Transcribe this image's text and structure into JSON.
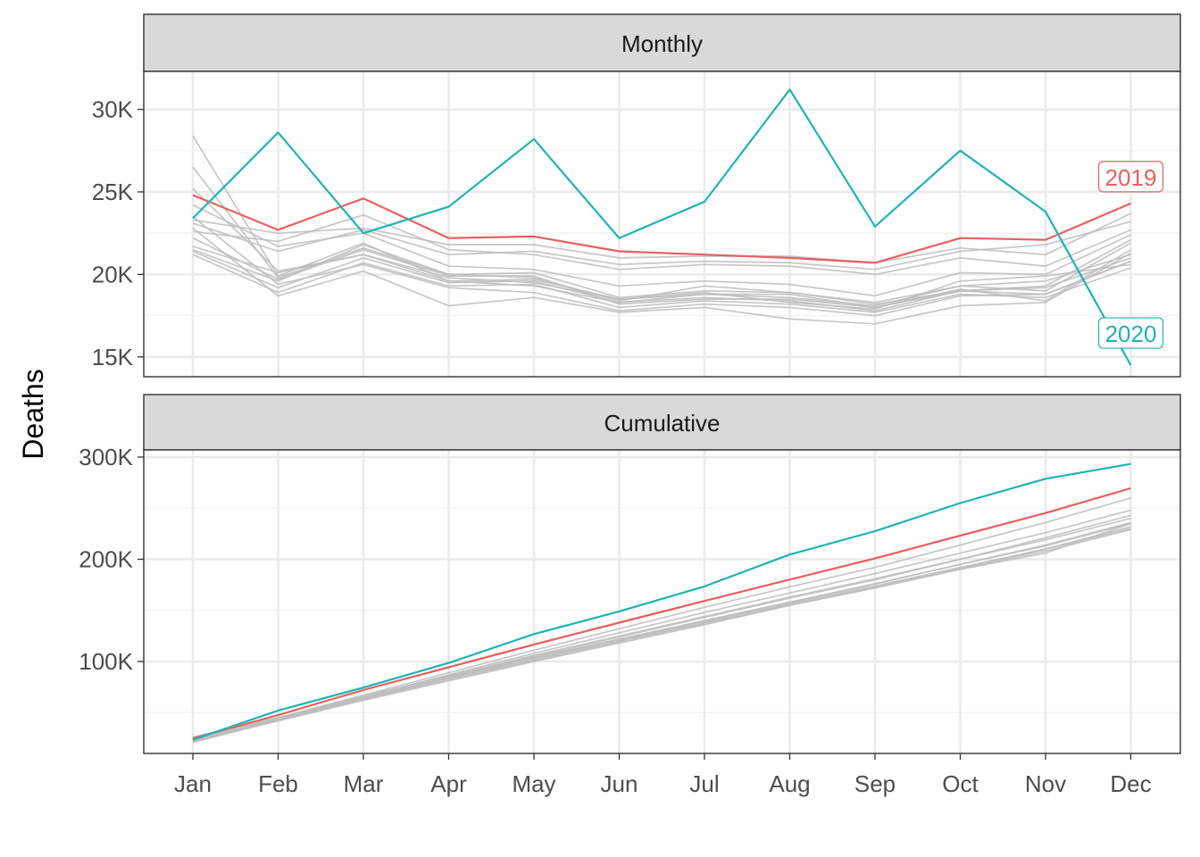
{
  "chart_data": {
    "type": "line",
    "ylabel": "Deaths",
    "categories": [
      "Jan",
      "Feb",
      "Mar",
      "Apr",
      "May",
      "Jun",
      "Jul",
      "Aug",
      "Sep",
      "Oct",
      "Nov",
      "Dec"
    ],
    "colors": {
      "highlight_2019": "#e8605f",
      "highlight_2020": "#1fb3b5",
      "background": "#bdbdbd"
    },
    "panels": [
      {
        "title": "Monthly",
        "ylim": [
          13800,
          32300
        ],
        "yticks": [
          15000,
          20000,
          25000,
          30000
        ],
        "ytick_labels": [
          "15K",
          "20K",
          "25K",
          "30K"
        ],
        "background_series": [
          [
            28400,
            19900,
            21900,
            19600,
            19300,
            18300,
            18800,
            18600,
            18100,
            19300,
            19000,
            21900
          ],
          [
            26500,
            19800,
            21600,
            20000,
            19800,
            18400,
            19300,
            18900,
            18200,
            19000,
            19200,
            21000
          ],
          [
            25200,
            20200,
            21200,
            19800,
            19500,
            18500,
            18900,
            18300,
            17900,
            19600,
            19900,
            20600
          ],
          [
            24200,
            21700,
            22500,
            20500,
            20300,
            19300,
            19600,
            19400,
            18700,
            20100,
            20000,
            22400
          ],
          [
            23500,
            19400,
            20600,
            19200,
            18900,
            17800,
            18200,
            18000,
            17500,
            18700,
            18800,
            20800
          ],
          [
            22800,
            18700,
            20200,
            18100,
            18600,
            17700,
            18000,
            17300,
            17000,
            18100,
            18300,
            21300
          ],
          [
            22200,
            19700,
            21500,
            19900,
            19900,
            18200,
            18500,
            18500,
            18000,
            19100,
            18400,
            21500
          ],
          [
            21700,
            20100,
            21200,
            19600,
            19700,
            18500,
            18800,
            18800,
            18000,
            19000,
            19300,
            22100
          ],
          [
            21500,
            19600,
            21800,
            20000,
            20100,
            18600,
            19000,
            18900,
            18300,
            19300,
            19600,
            21200
          ],
          [
            21200,
            18900,
            20700,
            19300,
            19400,
            18000,
            18400,
            18200,
            17700,
            18800,
            18600,
            20400
          ],
          [
            21400,
            19200,
            21000,
            19500,
            19600,
            18300,
            18600,
            18400,
            17800,
            19000,
            18800,
            20800
          ],
          [
            23300,
            22500,
            22800,
            21800,
            21800,
            21000,
            21100,
            21100,
            20700,
            21600,
            21200,
            23700
          ],
          [
            22600,
            22000,
            23600,
            21500,
            21200,
            20300,
            20600,
            20500,
            20000,
            21000,
            20500,
            22700
          ],
          [
            23100,
            21400,
            22700,
            21200,
            21400,
            20600,
            20800,
            20700,
            20300,
            21400,
            21800,
            23200
          ]
        ],
        "series": [
          {
            "name": "2019",
            "values": [
              24800,
              22700,
              24600,
              22200,
              22300,
              21400,
              21200,
              21000,
              20700,
              22200,
              22100,
              24300
            ]
          },
          {
            "name": "2020",
            "values": [
              23400,
              28600,
              22500,
              24100,
              28200,
              22200,
              24400,
              31200,
              22900,
              27500,
              23800,
              14500
            ]
          }
        ]
      },
      {
        "title": "Cumulative",
        "ylim": [
          10000,
          307000
        ],
        "yticks": [
          100000,
          200000,
          300000
        ],
        "ytick_labels": [
          "100K",
          "200K",
          "300K"
        ],
        "background_series": [
          [
            26000,
            45000,
            66000,
            86000,
            104000,
            122000,
            140000,
            158000,
            176000,
            195000,
            213000,
            235000
          ],
          [
            25000,
            44000,
            64000,
            84000,
            104000,
            121000,
            139000,
            157000,
            174000,
            192000,
            210000,
            230000
          ],
          [
            24000,
            43000,
            63000,
            83000,
            102000,
            120000,
            138000,
            156000,
            173000,
            191000,
            208000,
            229000
          ],
          [
            23000,
            42000,
            62000,
            81000,
            100000,
            118000,
            136000,
            155000,
            172000,
            190000,
            206000,
            235000
          ],
          [
            22000,
            43000,
            64000,
            85000,
            105000,
            124000,
            143000,
            162000,
            180000,
            200000,
            221000,
            243000
          ],
          [
            21000,
            44000,
            65000,
            87000,
            108000,
            128000,
            148000,
            167000,
            186000,
            206000,
            226000,
            248000
          ],
          [
            22000,
            45000,
            67000,
            89000,
            111000,
            132000,
            153000,
            173000,
            192000,
            214000,
            236000,
            260000
          ],
          [
            23000,
            44000,
            66000,
            86000,
            106000,
            125000,
            144000,
            163000,
            181000,
            200000,
            219000,
            240000
          ],
          [
            22000,
            43000,
            64000,
            84000,
            103000,
            121000,
            140000,
            158000,
            176000,
            195000,
            214000,
            236000
          ],
          [
            21000,
            42000,
            63000,
            82000,
            101000,
            119000,
            137000,
            155000,
            172000,
            191000,
            210000,
            232000
          ]
        ],
        "series": [
          {
            "name": "2019",
            "values": [
              24800,
              47500,
              72100,
              94300,
              116600,
              138000,
              159200,
              180200,
              200900,
              223100,
              245200,
              269500
            ]
          },
          {
            "name": "2020",
            "values": [
              23400,
              52000,
              74500,
              98600,
              126800,
              149000,
              173400,
              204600,
              227500,
              255000,
              278800,
              293300
            ]
          }
        ]
      }
    ],
    "annotations": [
      {
        "text": "2019",
        "panel": "Monthly",
        "series": "2019"
      },
      {
        "text": "2020",
        "panel": "Monthly",
        "series": "2020"
      }
    ]
  }
}
